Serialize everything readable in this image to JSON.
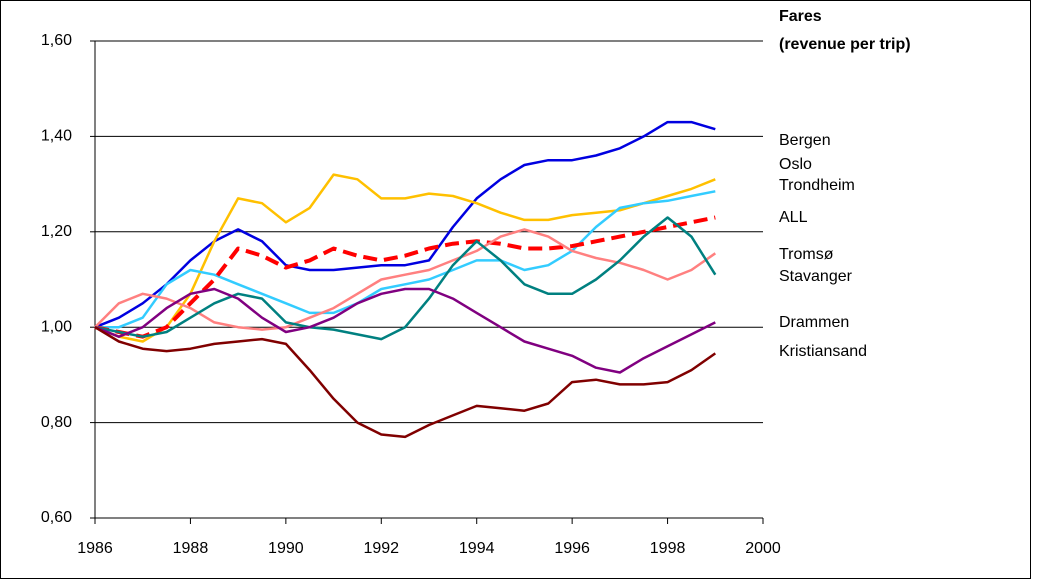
{
  "chart_data": {
    "type": "line",
    "title": "Fares",
    "subtitle": "(revenue per trip)",
    "x": [
      1986,
      1986.5,
      1987,
      1987.5,
      1988,
      1988.5,
      1989,
      1989.5,
      1990,
      1990.5,
      1991,
      1991.5,
      1992,
      1992.5,
      1993,
      1993.5,
      1994,
      1994.5,
      1995,
      1995.5,
      1996,
      1996.5,
      1997,
      1997.5,
      1998,
      1998.5,
      1999
    ],
    "xlim": [
      1986,
      2000
    ],
    "xticks": [
      1986,
      1988,
      1990,
      1992,
      1994,
      1996,
      1998,
      2000
    ],
    "ylim": [
      0.6,
      1.6
    ],
    "yticks": [
      {
        "value": 0.6,
        "label": "0,60"
      },
      {
        "value": 0.8,
        "label": "0,80"
      },
      {
        "value": 1.0,
        "label": "1,00"
      },
      {
        "value": 1.2,
        "label": "1,20"
      },
      {
        "value": 1.4,
        "label": "1,40"
      },
      {
        "value": 1.6,
        "label": "1,60"
      }
    ],
    "grid": true,
    "series": [
      {
        "name": "Bergen",
        "color": "#0000e0",
        "values": [
          1.0,
          1.02,
          1.05,
          1.09,
          1.14,
          1.18,
          1.205,
          1.18,
          1.13,
          1.12,
          1.12,
          1.125,
          1.13,
          1.13,
          1.14,
          1.21,
          1.27,
          1.31,
          1.34,
          1.35,
          1.35,
          1.36,
          1.375,
          1.4,
          1.43,
          1.43,
          1.415
        ]
      },
      {
        "name": "Oslo",
        "color": "#ffc000",
        "values": [
          1.0,
          0.98,
          0.97,
          1.0,
          1.07,
          1.18,
          1.27,
          1.26,
          1.22,
          1.25,
          1.32,
          1.31,
          1.27,
          1.27,
          1.28,
          1.275,
          1.26,
          1.24,
          1.225,
          1.225,
          1.235,
          1.24,
          1.245,
          1.26,
          1.275,
          1.29,
          1.31
        ]
      },
      {
        "name": "Trondheim",
        "color": "#33ccff",
        "values": [
          1.0,
          1.0,
          1.02,
          1.09,
          1.12,
          1.11,
          1.09,
          1.07,
          1.05,
          1.03,
          1.03,
          1.05,
          1.08,
          1.09,
          1.1,
          1.12,
          1.14,
          1.14,
          1.12,
          1.13,
          1.16,
          1.21,
          1.25,
          1.26,
          1.265,
          1.275,
          1.285
        ]
      },
      {
        "name": "ALL",
        "color": "#ff0000",
        "dashed": true,
        "values": [
          1.0,
          0.99,
          0.98,
          1.0,
          1.05,
          1.1,
          1.165,
          1.15,
          1.125,
          1.14,
          1.165,
          1.15,
          1.14,
          1.15,
          1.165,
          1.175,
          1.18,
          1.175,
          1.165,
          1.165,
          1.17,
          1.18,
          1.19,
          1.2,
          1.21,
          1.22,
          1.23
        ]
      },
      {
        "name": "Tromsø",
        "color": "#ff8080",
        "values": [
          1.0,
          1.05,
          1.07,
          1.06,
          1.04,
          1.01,
          1.0,
          0.995,
          1.0,
          1.02,
          1.04,
          1.07,
          1.1,
          1.11,
          1.12,
          1.14,
          1.16,
          1.19,
          1.205,
          1.19,
          1.16,
          1.145,
          1.135,
          1.12,
          1.1,
          1.12,
          1.155
        ]
      },
      {
        "name": "Stavanger",
        "color": "#008080",
        "values": [
          1.0,
          0.99,
          0.98,
          0.99,
          1.02,
          1.05,
          1.07,
          1.06,
          1.01,
          1.0,
          0.995,
          0.985,
          0.975,
          1.0,
          1.06,
          1.13,
          1.18,
          1.14,
          1.09,
          1.07,
          1.07,
          1.1,
          1.14,
          1.19,
          1.23,
          1.19,
          1.11
        ]
      },
      {
        "name": "Drammen",
        "color": "#800080",
        "values": [
          1.0,
          0.98,
          1.0,
          1.04,
          1.07,
          1.08,
          1.06,
          1.02,
          0.99,
          1.0,
          1.02,
          1.05,
          1.07,
          1.08,
          1.08,
          1.06,
          1.03,
          1.0,
          0.97,
          0.955,
          0.94,
          0.915,
          0.905,
          0.935,
          0.96,
          0.985,
          1.01
        ]
      },
      {
        "name": "Kristiansand",
        "color": "#800000",
        "values": [
          1.0,
          0.97,
          0.955,
          0.95,
          0.955,
          0.965,
          0.97,
          0.975,
          0.965,
          0.91,
          0.85,
          0.8,
          0.775,
          0.77,
          0.795,
          0.815,
          0.835,
          0.83,
          0.825,
          0.84,
          0.885,
          0.89,
          0.88,
          0.88,
          0.885,
          0.91,
          0.945
        ]
      }
    ]
  }
}
